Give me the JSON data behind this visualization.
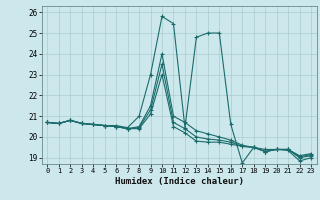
{
  "xlabel": "Humidex (Indice chaleur)",
  "xlim": [
    -0.5,
    23.5
  ],
  "ylim": [
    18.7,
    26.3
  ],
  "xticks": [
    0,
    1,
    2,
    3,
    4,
    5,
    6,
    7,
    8,
    9,
    10,
    11,
    12,
    13,
    14,
    15,
    16,
    17,
    18,
    19,
    20,
    21,
    22,
    23
  ],
  "yticks": [
    19,
    20,
    21,
    22,
    23,
    24,
    25,
    26
  ],
  "background_color": "#cce8ec",
  "grid_color": "#aacccc",
  "line_color": "#1a6b6b",
  "curves": [
    [
      20.7,
      20.65,
      20.8,
      20.65,
      20.6,
      20.55,
      20.55,
      20.45,
      21.0,
      23.0,
      25.8,
      25.45,
      20.45,
      24.8,
      25.0,
      25.0,
      20.6,
      18.75,
      19.5,
      19.4,
      19.4,
      19.35,
      18.85,
      19.0
    ],
    [
      20.7,
      20.65,
      20.8,
      20.65,
      20.6,
      20.55,
      20.5,
      20.4,
      20.5,
      21.5,
      24.0,
      21.0,
      20.7,
      20.3,
      20.15,
      20.0,
      19.85,
      19.6,
      19.5,
      19.3,
      19.4,
      19.4,
      19.0,
      19.1
    ],
    [
      20.7,
      20.65,
      20.8,
      20.65,
      20.6,
      20.55,
      20.5,
      20.4,
      20.45,
      21.3,
      23.5,
      20.7,
      20.4,
      20.0,
      19.9,
      19.85,
      19.75,
      19.55,
      19.5,
      19.3,
      19.4,
      19.4,
      19.05,
      19.15
    ],
    [
      20.7,
      20.65,
      20.8,
      20.65,
      20.6,
      20.55,
      20.5,
      20.4,
      20.4,
      21.1,
      23.0,
      20.5,
      20.2,
      19.8,
      19.75,
      19.75,
      19.65,
      19.55,
      19.5,
      19.3,
      19.4,
      19.4,
      19.1,
      19.2
    ]
  ]
}
